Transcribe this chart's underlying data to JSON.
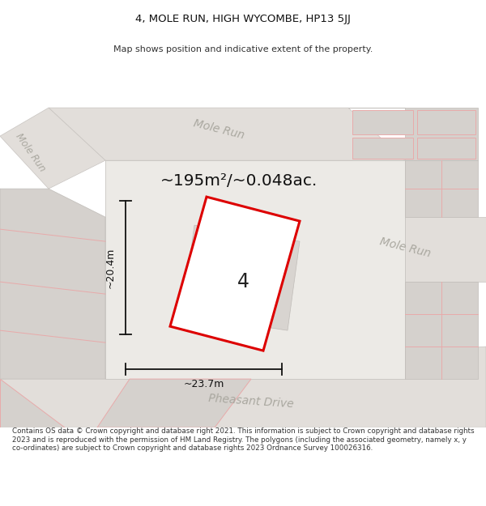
{
  "title": "4, MOLE RUN, HIGH WYCOMBE, HP13 5JJ",
  "subtitle": "Map shows position and indicative extent of the property.",
  "area_text": "~195m²/~0.048ac.",
  "label_4": "4",
  "dim_width": "~23.7m",
  "dim_height": "~20.4m",
  "street_mole_run_top": "Mole Run",
  "street_mole_run_left": "Mole Run",
  "street_mole_run_right": "Mole Run",
  "street_pheasant": "Pheasant Drive",
  "footer": "Contains OS data © Crown copyright and database right 2021. This information is subject to Crown copyright and database rights 2023 and is reproduced with the permission of HM Land Registry. The polygons (including the associated geometry, namely x, y co-ordinates) are subject to Crown copyright and database rights 2023 Ordnance Survey 100026316.",
  "map_bg": "#f2f0ed",
  "road_fill": "#e2deda",
  "plot_fill": "#ffffff",
  "plot_stroke": "#dd0000",
  "block_fill": "#d5d1cd",
  "block_fill2": "#e0dcd8",
  "light_red": "#e8aaaa",
  "road_label_color": "#aaa8a0",
  "dim_line_color": "#111111"
}
